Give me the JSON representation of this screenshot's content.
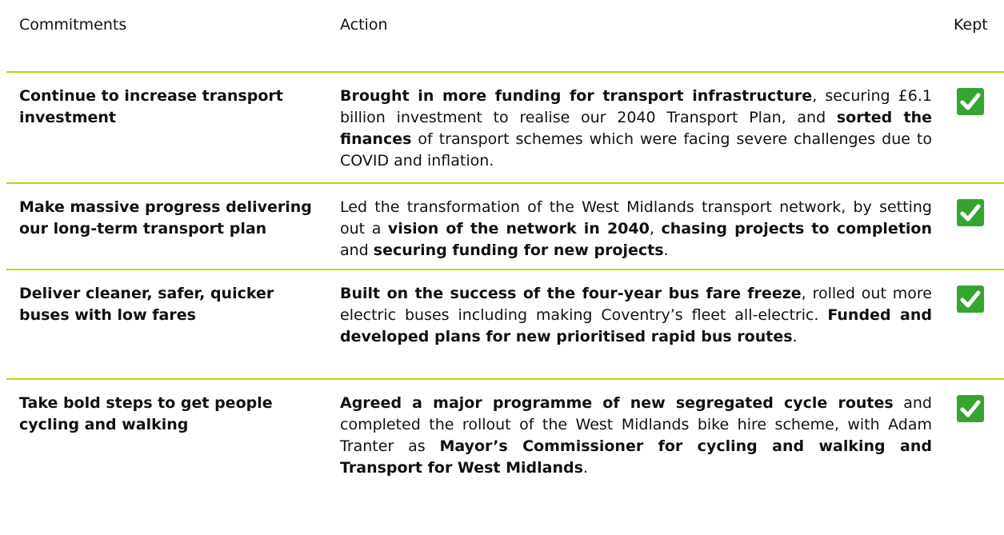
{
  "table": {
    "headers": [
      "Commitments",
      "Action",
      "Kept"
    ],
    "rows": [
      {
        "commitment": "Continue to increase transport investment",
        "action": [
          {
            "text": "Brought in more funding for transport infrastructure",
            "bold": true
          },
          {
            "text": ", securing £6.1 billion investment to realise our 2040 Transport Plan, and ",
            "bold": false
          },
          {
            "text": "sorted the finances",
            "bold": true
          },
          {
            "text": " of transport schemes which were facing severe challenges due to COVID and inflation.",
            "bold": false
          }
        ]
      },
      {
        "commitment": "Make massive progress delivering our long-term transport plan",
        "action": [
          {
            "text": "Led the transformation of the West Midlands transport network, by setting out a ",
            "bold": false
          },
          {
            "text": "vision of the network in 2040",
            "bold": true
          },
          {
            "text": ", ",
            "bold": false
          },
          {
            "text": "chasing projects to completion",
            "bold": true
          },
          {
            "text": " and ",
            "bold": false
          },
          {
            "text": "securing funding for new projects",
            "bold": true
          },
          {
            "text": ".",
            "bold": false
          }
        ]
      },
      {
        "commitment": "Deliver cleaner, safer, quicker buses with low fares",
        "action": [
          {
            "text": "Built on the success of the four-year bus fare freeze",
            "bold": true
          },
          {
            "text": ", rolled out more electric buses including making Coventry’s fleet all-electric. ",
            "bold": false
          },
          {
            "text": "Funded and developed plans for new prioritised rapid bus routes",
            "bold": true
          },
          {
            "text": ".",
            "bold": false
          }
        ]
      },
      {
        "commitment": "Take bold steps to get people cycling and walking",
        "action": [
          {
            "text": "Agreed a major programme of new segregated cycle routes",
            "bold": true
          },
          {
            "text": " and completed the rollout of the West Midlands bike hire scheme, with Adam Tranter as ",
            "bold": false
          },
          {
            "text": "Mayor’s Commissioner for cycling and walking and Transport for West Midlands",
            "bold": true
          },
          {
            "text": ".",
            "bold": false
          }
        ]
      }
    ]
  }
}
